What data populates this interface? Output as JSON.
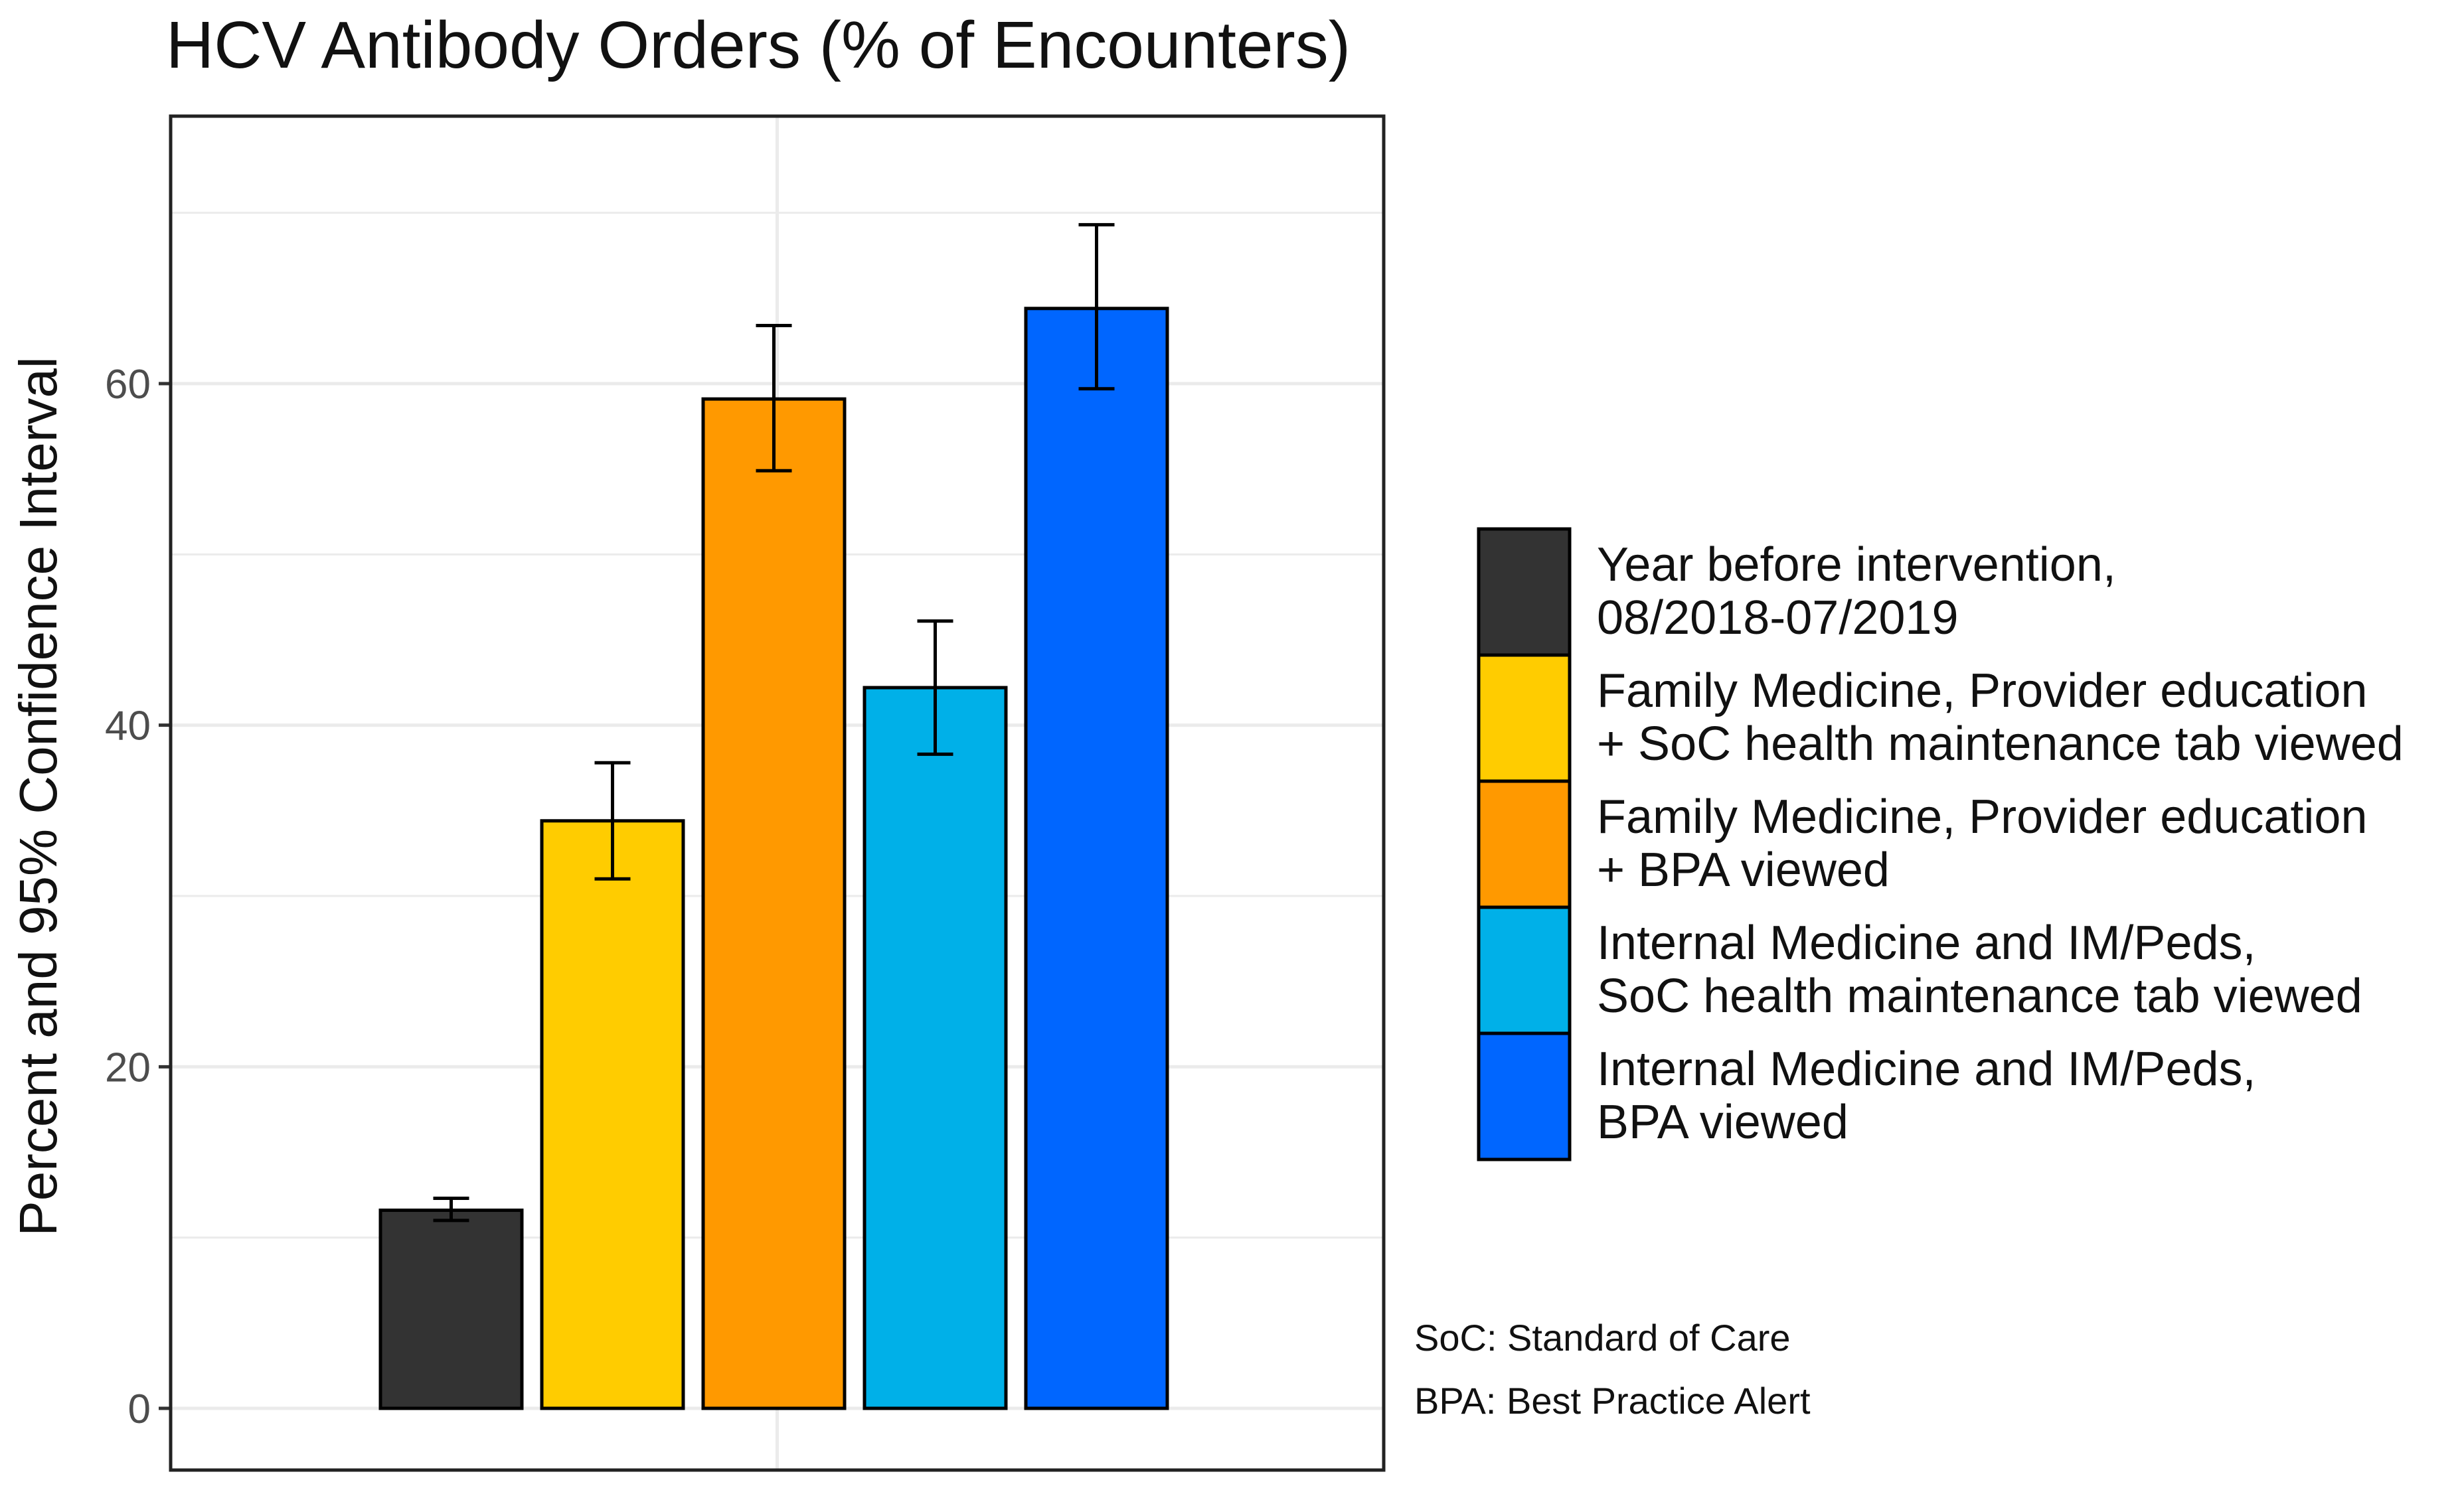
{
  "chart_data": {
    "type": "bar",
    "title": "HCV Antibody Orders (% of Encounters)",
    "xlabel": "",
    "ylabel": "Percent and 95% Confidence Interval",
    "ylim": [
      -3.5,
      75
    ],
    "yticks": [
      0,
      20,
      40,
      60
    ],
    "grid": true,
    "legend_position": "right",
    "series": [
      {
        "name_lines": [
          "Year before intervention,",
          " 08/2018-07/2019"
        ],
        "value": 11.6,
        "ci": [
          11.0,
          12.3
        ],
        "color": "#333333"
      },
      {
        "name_lines": [
          "Family Medicine, Provider education",
          "+ SoC health maintenance tab viewed"
        ],
        "value": 34.4,
        "ci": [
          31.0,
          37.8
        ],
        "color": "#FFCC00"
      },
      {
        "name_lines": [
          "Family Medicine, Provider education",
          "+ BPA viewed"
        ],
        "value": 59.1,
        "ci": [
          54.9,
          63.4
        ],
        "color": "#FF9900"
      },
      {
        "name_lines": [
          "Internal Medicine and IM/Peds,",
          "SoC health maintenance tab viewed"
        ],
        "value": 42.2,
        "ci": [
          38.3,
          46.1
        ],
        "color": "#00B0E8"
      },
      {
        "name_lines": [
          "Internal Medicine and IM/Peds,",
          "BPA viewed"
        ],
        "value": 64.4,
        "ci": [
          59.7,
          69.3
        ],
        "color": "#0066FF"
      }
    ],
    "annotations": [
      "SoC: Standard of Care",
      "BPA: Best Practice Alert"
    ]
  }
}
